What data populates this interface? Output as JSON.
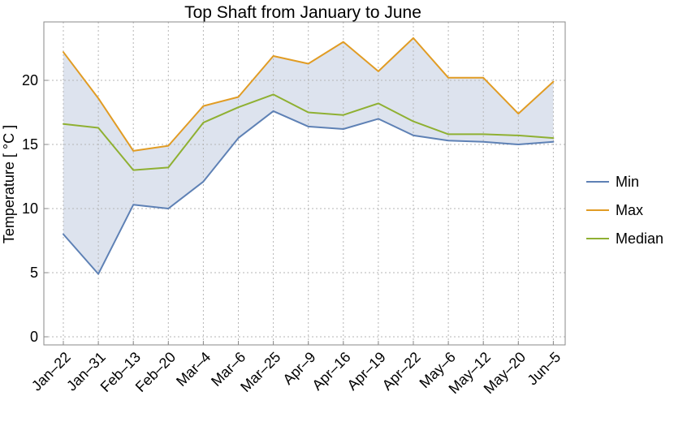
{
  "chart_data": {
    "type": "line",
    "title": "Top Shaft from January to June",
    "xlabel": "",
    "ylabel": "Temperature [ °C ]",
    "ylim": [
      0,
      25
    ],
    "yticks": [
      0,
      5,
      10,
      15,
      20
    ],
    "categories": [
      "Jan–22",
      "Jan–31",
      "Feb–13",
      "Feb–20",
      "Mar–4",
      "Mar–6",
      "Mar–25",
      "Apr–9",
      "Apr–16",
      "Apr–19",
      "Apr–22",
      "May–6",
      "May–12",
      "May–20",
      "Jun–5"
    ],
    "grid": true,
    "legend_position": "right",
    "band": {
      "between": [
        "Min",
        "Max"
      ],
      "color": "#dde3ee"
    },
    "series": [
      {
        "name": "Min",
        "color": "#5e81b5",
        "values": [
          8.0,
          4.9,
          10.3,
          10.0,
          12.1,
          15.5,
          17.6,
          16.4,
          16.2,
          17.0,
          15.7,
          15.3,
          15.2,
          15.0,
          15.2
        ]
      },
      {
        "name": "Max",
        "color": "#e19c24",
        "values": [
          22.2,
          18.6,
          14.5,
          14.9,
          18.0,
          18.7,
          21.9,
          21.3,
          23.0,
          20.7,
          23.3,
          20.2,
          20.2,
          17.4,
          19.9
        ]
      },
      {
        "name": "Median",
        "color": "#8fb032",
        "values": [
          16.6,
          16.3,
          13.0,
          13.2,
          16.7,
          17.9,
          18.9,
          17.5,
          17.3,
          18.2,
          16.8,
          15.8,
          15.8,
          15.7,
          15.5
        ]
      }
    ]
  }
}
